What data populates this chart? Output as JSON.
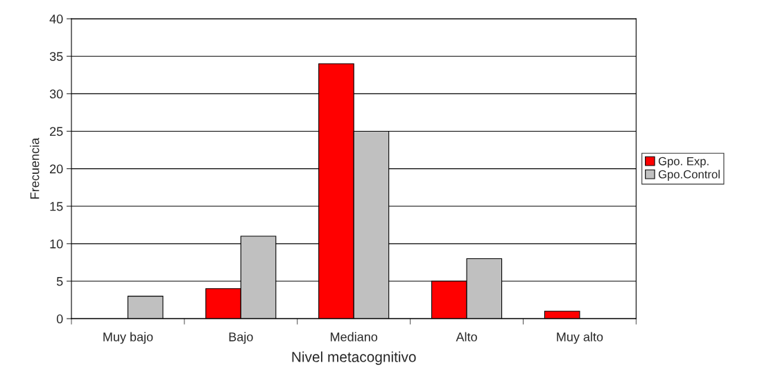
{
  "chart_data": {
    "type": "bar",
    "xlabel": "Nivel metacognitivo",
    "ylabel": "Frecuencia",
    "categories": [
      "Muy bajo",
      "Bajo",
      "Mediano",
      "Alto",
      "Muy alto"
    ],
    "series": [
      {
        "name": "Gpo. Exp.",
        "color": "#ff0000",
        "values": [
          0,
          4,
          34,
          5,
          1
        ]
      },
      {
        "name": "Gpo.Control",
        "color": "#c0c0c0",
        "values": [
          3,
          11,
          25,
          8,
          0
        ]
      }
    ],
    "ylim": [
      0,
      40
    ],
    "yticks": [
      0,
      5,
      10,
      15,
      20,
      25,
      30,
      35,
      40
    ],
    "grid": "y",
    "legend": "right"
  }
}
